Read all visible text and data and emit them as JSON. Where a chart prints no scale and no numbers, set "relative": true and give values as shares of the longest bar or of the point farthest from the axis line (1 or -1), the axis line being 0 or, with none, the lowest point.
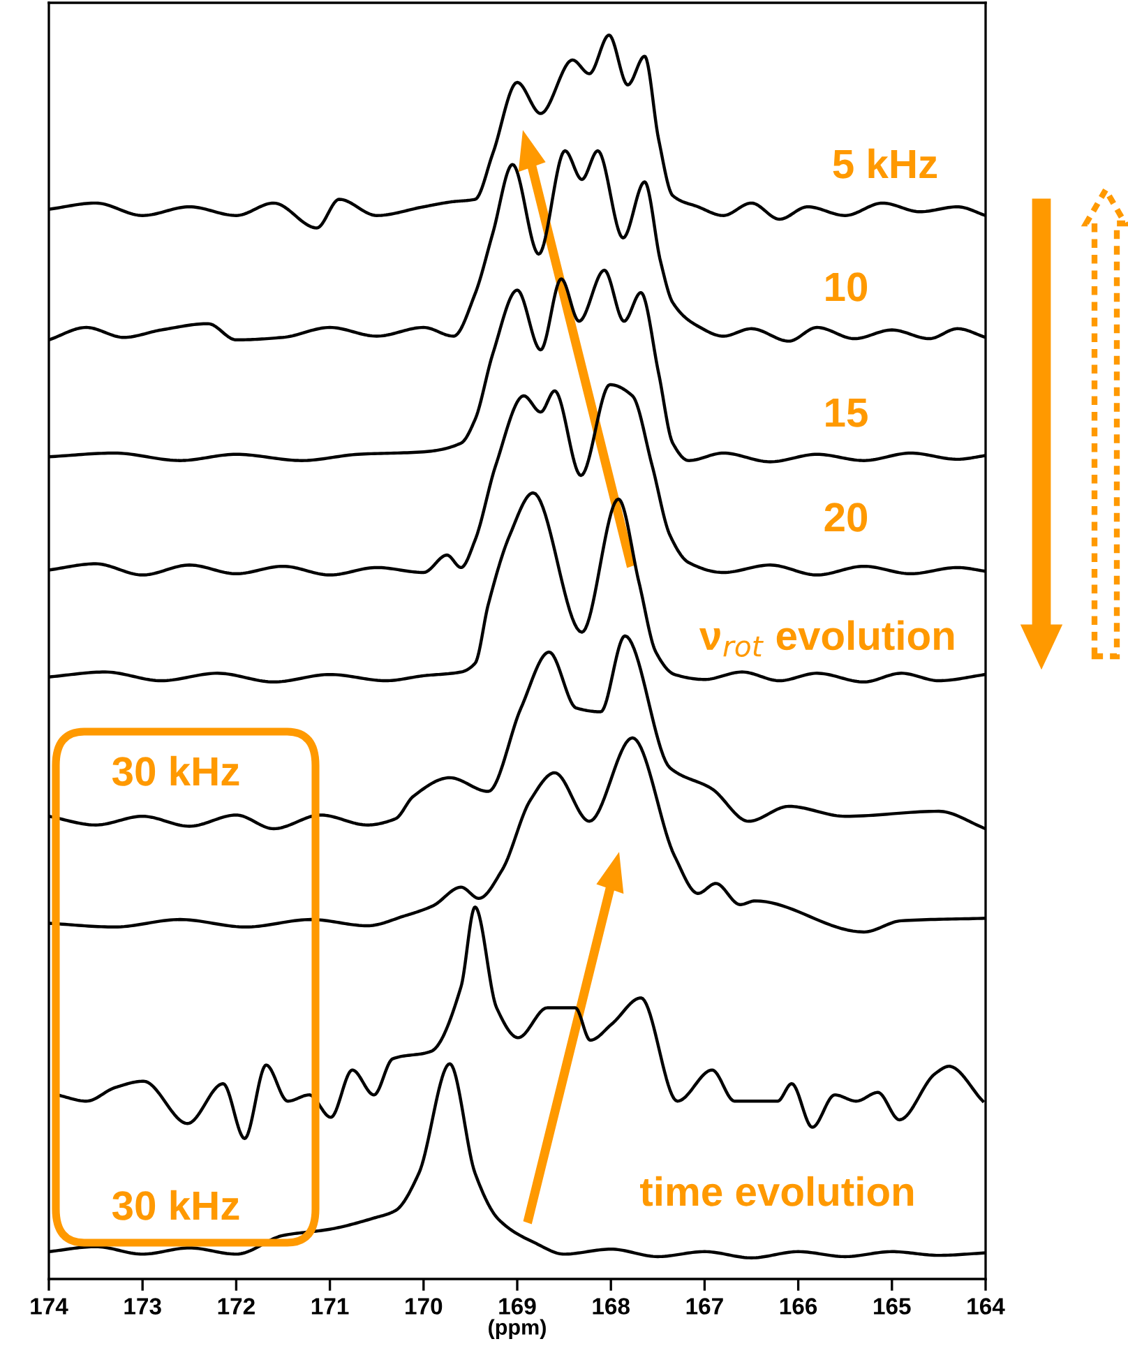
{
  "chart_data": {
    "type": "line",
    "relative": true,
    "xlabel": "(ppm)",
    "xlim": [
      174,
      164
    ],
    "xticks": [
      174,
      173,
      172,
      171,
      170,
      169,
      168,
      167,
      166,
      165,
      164
    ],
    "grid": false,
    "legend": false,
    "marker": "none",
    "line_style": "solid",
    "annotations": [
      "5 kHz",
      "10",
      "15",
      "20",
      "ν$_{rot}$ evolution",
      "30 kHz",
      "30 kHz",
      "time evolution"
    ],
    "series": [
      {
        "color": "#000000",
        "x": [
          174.0,
          173.5,
          173.0,
          172.5,
          172.0,
          171.6,
          171.14,
          170.9,
          170.5,
          170.0,
          169.7,
          169.45,
          169.26,
          169.0,
          168.75,
          168.41,
          168.23,
          168.02,
          167.82,
          167.64,
          167.49,
          167.34,
          167.07,
          166.8,
          166.5,
          166.2,
          165.9,
          165.5,
          165.1,
          164.7,
          164.3,
          164.0
        ],
        "values": [
          0.86,
          0.865,
          0.855,
          0.862,
          0.855,
          0.865,
          0.845,
          0.868,
          0.855,
          0.862,
          0.866,
          0.868,
          0.905,
          0.962,
          0.937,
          0.98,
          0.969,
          1.0,
          0.96,
          0.983,
          0.916,
          0.871,
          0.862,
          0.855,
          0.865,
          0.852,
          0.862,
          0.855,
          0.865,
          0.858,
          0.862,
          0.855
        ]
      },
      {
        "color": "#000000",
        "x": [
          174.0,
          173.6,
          173.2,
          172.8,
          172.3,
          172.0,
          171.5,
          171.0,
          170.5,
          170.0,
          169.68,
          169.45,
          169.26,
          169.05,
          168.77,
          168.49,
          168.31,
          168.14,
          167.87,
          167.64,
          167.47,
          167.34,
          167.07,
          166.8,
          166.5,
          166.1,
          165.8,
          165.4,
          165.0,
          164.6,
          164.3,
          164.0
        ],
        "values": [
          0.755,
          0.765,
          0.757,
          0.763,
          0.768,
          0.755,
          0.757,
          0.765,
          0.758,
          0.765,
          0.758,
          0.792,
          0.841,
          0.896,
          0.824,
          0.907,
          0.884,
          0.907,
          0.837,
          0.882,
          0.818,
          0.785,
          0.766,
          0.758,
          0.764,
          0.754,
          0.765,
          0.756,
          0.763,
          0.756,
          0.764,
          0.757
        ]
      },
      {
        "color": "#000000",
        "x": [
          174.0,
          173.3,
          172.6,
          172.0,
          171.3,
          170.7,
          170.0,
          169.6,
          169.45,
          169.26,
          169.0,
          168.75,
          168.53,
          168.34,
          168.07,
          167.86,
          167.68,
          167.49,
          167.34,
          167.17,
          166.8,
          166.3,
          165.8,
          165.3,
          164.8,
          164.3,
          164.0
        ],
        "values": [
          0.661,
          0.664,
          0.658,
          0.663,
          0.658,
          0.663,
          0.665,
          0.672,
          0.691,
          0.744,
          0.795,
          0.747,
          0.804,
          0.77,
          0.811,
          0.77,
          0.793,
          0.728,
          0.672,
          0.658,
          0.664,
          0.657,
          0.663,
          0.658,
          0.664,
          0.659,
          0.662
        ]
      },
      {
        "color": "#000000",
        "x": [
          174.0,
          173.5,
          173.0,
          172.5,
          172.0,
          171.5,
          171.0,
          170.5,
          170.0,
          169.75,
          169.6,
          169.45,
          169.23,
          168.93,
          168.75,
          168.6,
          168.32,
          168.01,
          167.77,
          167.56,
          167.37,
          167.17,
          166.8,
          166.3,
          165.8,
          165.3,
          164.8,
          164.3,
          164.0
        ],
        "values": [
          0.57,
          0.575,
          0.566,
          0.574,
          0.567,
          0.573,
          0.566,
          0.572,
          0.568,
          0.582,
          0.572,
          0.594,
          0.654,
          0.71,
          0.697,
          0.714,
          0.646,
          0.719,
          0.71,
          0.654,
          0.598,
          0.576,
          0.568,
          0.574,
          0.566,
          0.573,
          0.567,
          0.572,
          0.569
        ]
      },
      {
        "color": "#000000",
        "x": [
          174.0,
          173.4,
          172.8,
          172.2,
          171.6,
          171.0,
          170.4,
          170.0,
          169.6,
          169.45,
          169.31,
          169.08,
          168.83,
          168.31,
          167.92,
          167.7,
          167.52,
          167.32,
          167.0,
          166.6,
          166.2,
          165.8,
          165.3,
          164.9,
          164.5,
          164.0
        ],
        "values": [
          0.484,
          0.488,
          0.481,
          0.487,
          0.48,
          0.486,
          0.481,
          0.485,
          0.488,
          0.495,
          0.542,
          0.598,
          0.632,
          0.52,
          0.627,
          0.56,
          0.504,
          0.486,
          0.482,
          0.488,
          0.481,
          0.487,
          0.48,
          0.487,
          0.481,
          0.486
        ]
      },
      {
        "color": "#000000",
        "x": [
          174.0,
          173.5,
          173.0,
          172.5,
          172.0,
          171.6,
          171.1,
          170.6,
          170.3,
          170.11,
          169.72,
          169.31,
          168.96,
          168.66,
          168.37,
          168.11,
          167.85,
          167.37,
          166.92,
          166.53,
          166.1,
          165.5,
          164.5,
          164.0
        ],
        "values": [
          0.372,
          0.365,
          0.372,
          0.364,
          0.373,
          0.362,
          0.373,
          0.365,
          0.37,
          0.388,
          0.403,
          0.392,
          0.459,
          0.504,
          0.459,
          0.456,
          0.517,
          0.411,
          0.394,
          0.368,
          0.38,
          0.372,
          0.376,
          0.362
        ]
      },
      {
        "color": "#000000",
        "x": [
          174.0,
          173.3,
          172.6,
          171.9,
          171.2,
          170.6,
          170.2,
          169.9,
          169.6,
          169.41,
          169.16,
          168.86,
          168.6,
          168.23,
          167.77,
          167.32,
          167.07,
          166.88,
          166.62,
          166.46,
          165.3,
          164.9,
          164.0
        ],
        "values": [
          0.286,
          0.283,
          0.289,
          0.283,
          0.289,
          0.284,
          0.292,
          0.3,
          0.315,
          0.306,
          0.329,
          0.385,
          0.407,
          0.368,
          0.435,
          0.34,
          0.31,
          0.318,
          0.301,
          0.304,
          0.279,
          0.288,
          0.29
        ]
      },
      {
        "color": "#000000",
        "x": [
          173.91,
          173.6,
          173.29,
          172.99,
          172.52,
          172.14,
          171.91,
          171.68,
          171.45,
          171.22,
          170.99,
          170.76,
          170.53,
          170.33,
          169.92,
          169.6,
          169.45,
          169.22,
          168.99,
          168.68,
          168.38,
          168.22,
          167.99,
          167.68,
          167.29,
          166.92,
          166.68,
          166.22,
          166.07,
          165.85,
          165.61,
          165.38,
          165.15,
          164.92,
          164.54,
          164.39,
          164.03
        ],
        "values": [
          0.148,
          0.143,
          0.154,
          0.159,
          0.125,
          0.157,
          0.113,
          0.172,
          0.143,
          0.148,
          0.13,
          0.168,
          0.148,
          0.177,
          0.183,
          0.235,
          0.299,
          0.218,
          0.194,
          0.218,
          0.218,
          0.192,
          0.205,
          0.226,
          0.143,
          0.168,
          0.143,
          0.143,
          0.157,
          0.122,
          0.148,
          0.143,
          0.15,
          0.128,
          0.165,
          0.171,
          0.143
        ]
      },
      {
        "color": "#000000",
        "x": [
          174.0,
          173.5,
          173.0,
          172.5,
          172.0,
          171.5,
          171.0,
          170.53,
          170.3,
          170.05,
          169.72,
          169.45,
          169.2,
          168.81,
          168.5,
          168.0,
          167.5,
          167.0,
          166.5,
          166.0,
          165.5,
          165.0,
          164.5,
          164.0
        ],
        "values": [
          0.022,
          0.026,
          0.02,
          0.025,
          0.02,
          0.035,
          0.04,
          0.049,
          0.055,
          0.085,
          0.173,
          0.085,
          0.048,
          0.029,
          0.02,
          0.024,
          0.018,
          0.022,
          0.017,
          0.022,
          0.018,
          0.022,
          0.019,
          0.021
        ]
      }
    ]
  }
}
